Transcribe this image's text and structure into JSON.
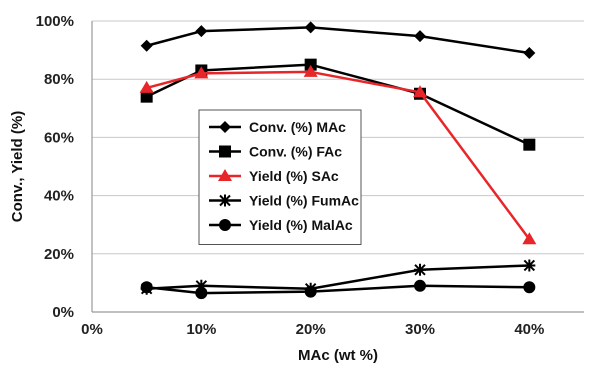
{
  "chart_data": {
    "type": "line",
    "xlabel": "MAc (wt %)",
    "ylabel": "Conv., Yield (%)",
    "xlim": [
      0,
      45
    ],
    "ylim": [
      0,
      100
    ],
    "x_ticks": [
      0,
      10,
      20,
      30,
      40
    ],
    "x_tick_labels": [
      "0%",
      "10%",
      "20%",
      "30%",
      "40%"
    ],
    "y_ticks": [
      0,
      20,
      40,
      60,
      80,
      100
    ],
    "y_tick_labels": [
      "0%",
      "20%",
      "40%",
      "60%",
      "80%",
      "100%"
    ],
    "grid": "horizontal",
    "legend_position": "center-left",
    "x": [
      5,
      10,
      20,
      30,
      40
    ],
    "series": [
      {
        "name": "Conv. (%) MAc",
        "values": [
          91.5,
          96.5,
          97.8,
          94.8,
          89.0
        ],
        "color": "#000000",
        "marker": "diamond"
      },
      {
        "name": "Conv. (%) FAc",
        "values": [
          74.0,
          83.0,
          85.0,
          75.0,
          57.5
        ],
        "color": "#000000",
        "marker": "square"
      },
      {
        "name": "Yield (%) SAc",
        "values": [
          77.0,
          82.0,
          82.5,
          75.5,
          25.0
        ],
        "color": "#e8262a",
        "marker": "triangle"
      },
      {
        "name": "Yield (%) FumAc",
        "values": [
          8.0,
          9.0,
          8.0,
          14.5,
          16.0
        ],
        "color": "#000000",
        "marker": "star"
      },
      {
        "name": "Yield (%) MalAc",
        "values": [
          8.5,
          6.5,
          7.0,
          9.0,
          8.5
        ],
        "color": "#000000",
        "marker": "circle"
      }
    ]
  }
}
